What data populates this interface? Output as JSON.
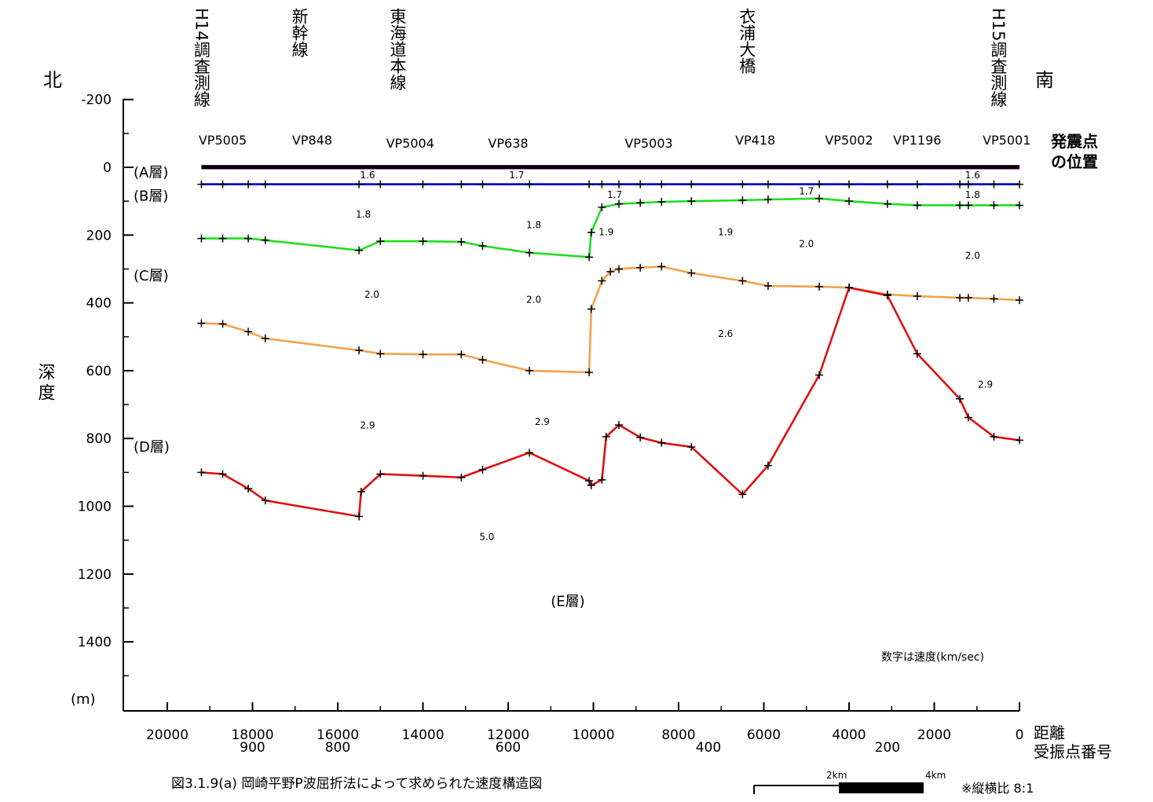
{
  "header": {
    "north": "北",
    "south": "南",
    "depth_label": "深度",
    "unit": "(m)",
    "shot_label_1": "発震点",
    "shot_label_2": "の位置",
    "distance_label": "距離",
    "receiver_label": "受振点番号",
    "velocity_note": "数字は速度(km/sec)",
    "caption": "図3.1.9(a)  岡崎平野P波屈折法によって求められた速度構造図",
    "aspect": "※縦横比 8:1",
    "scale_2km": "2km",
    "scale_4km": "4km"
  },
  "landmarks": [
    {
      "name": "H14調査測線",
      "x": 19200
    },
    {
      "name": "新幹線",
      "x": 16900
    },
    {
      "name": "東海道本線",
      "x": 14600
    },
    {
      "name": "衣浦大橋",
      "x": 6400
    },
    {
      "name": "H15調査測線",
      "x": 500
    }
  ],
  "chart_data": {
    "type": "line",
    "xlabel": "距離",
    "ylabel": "深度",
    "xlim": [
      21000,
      0
    ],
    "ylim": [
      -200,
      1600
    ],
    "x_ticks": [
      20000,
      18000,
      16000,
      14000,
      12000,
      10000,
      8000,
      6000,
      4000,
      2000,
      0
    ],
    "y_ticks": [
      -200,
      0,
      200,
      400,
      600,
      800,
      1000,
      1200,
      1400
    ],
    "receiver_ticks": [
      {
        "label": "900",
        "x": 18000
      },
      {
        "label": "800",
        "x": 16000
      },
      {
        "label": "600",
        "x": 12000
      },
      {
        "label": "400",
        "x": 7300
      },
      {
        "label": "200",
        "x": 3100
      }
    ],
    "shot_points": [
      {
        "label": "VP5005",
        "x": 18700
      },
      {
        "label": "VP848",
        "x": 16600
      },
      {
        "label": "VP5004",
        "x": 14300
      },
      {
        "label": "VP638",
        "x": 12000
      },
      {
        "label": "VP5003",
        "x": 8700
      },
      {
        "label": "VP418",
        "x": 6200
      },
      {
        "label": "VP5002",
        "x": 4000
      },
      {
        "label": "VP1196",
        "x": 2400
      },
      {
        "label": "VP5001",
        "x": 300
      }
    ],
    "layer_labels": [
      {
        "label": "(A層)",
        "y": 15
      },
      {
        "label": "(B層)",
        "y": 85
      },
      {
        "label": "(C層)",
        "y": 320
      },
      {
        "label": "(D層)",
        "y": 825
      },
      {
        "label": "(E層)",
        "x": 11000,
        "y": 1280
      }
    ],
    "velocities": [
      {
        "value": "1.6",
        "x": 15300,
        "y": 32
      },
      {
        "value": "1.7",
        "x": 11800,
        "y": 32
      },
      {
        "value": "1.7",
        "x": 9500,
        "y": 90
      },
      {
        "value": "1.7",
        "x": 5000,
        "y": 80
      },
      {
        "value": "1.6",
        "x": 1100,
        "y": 32
      },
      {
        "value": "1.8",
        "x": 15400,
        "y": 148
      },
      {
        "value": "1.8",
        "x": 11400,
        "y": 180
      },
      {
        "value": "1.8",
        "x": 1100,
        "y": 90
      },
      {
        "value": "1.9",
        "x": 9700,
        "y": 200
      },
      {
        "value": "1.9",
        "x": 6900,
        "y": 200
      },
      {
        "value": "2.0",
        "x": 5000,
        "y": 235
      },
      {
        "value": "2.0",
        "x": 1100,
        "y": 270
      },
      {
        "value": "2.0",
        "x": 15200,
        "y": 385
      },
      {
        "value": "2.0",
        "x": 11400,
        "y": 400
      },
      {
        "value": "2.6",
        "x": 6900,
        "y": 500
      },
      {
        "value": "2.9",
        "x": 800,
        "y": 650
      },
      {
        "value": "2.9",
        "x": 15300,
        "y": 770
      },
      {
        "value": "2.9",
        "x": 11200,
        "y": 760
      },
      {
        "value": "5.0",
        "x": 12500,
        "y": 1100
      }
    ],
    "series": [
      {
        "name": "地表",
        "color": "#000000",
        "x": [
          19200,
          0
        ],
        "y": [
          -1,
          -1
        ]
      },
      {
        "name": "A層下面",
        "color": "#0000cc",
        "x": [
          19200,
          18700,
          18100,
          17700,
          15500,
          15000,
          14000,
          13100,
          12600,
          11500,
          10100,
          9800,
          9400,
          8900,
          8400,
          7700,
          6500,
          5900,
          4700,
          4000,
          3100,
          2400,
          1400,
          1200,
          600,
          0
        ],
        "y": [
          50,
          50,
          50,
          50,
          50,
          50,
          50,
          50,
          50,
          50,
          50,
          50,
          50,
          50,
          50,
          50,
          50,
          50,
          50,
          50,
          50,
          50,
          50,
          50,
          50,
          50
        ]
      },
      {
        "name": "B層下面",
        "color": "#22dd22",
        "x": [
          19200,
          18700,
          18100,
          17700,
          15500,
          15000,
          14000,
          13100,
          12600,
          11500,
          10100,
          10050,
          9800,
          9400,
          8900,
          8400,
          7700,
          6500,
          5900,
          4700,
          4000,
          3100,
          2400,
          1400,
          1200,
          600,
          0
        ],
        "y": [
          210,
          210,
          210,
          215,
          245,
          218,
          218,
          220,
          232,
          252,
          265,
          192,
          118,
          108,
          105,
          102,
          100,
          97,
          95,
          92,
          100,
          108,
          112,
          112,
          112,
          112,
          112
        ]
      },
      {
        "name": "C層下面",
        "color": "#f5a04a",
        "x": [
          19200,
          18700,
          18100,
          17700,
          15500,
          15000,
          14000,
          13100,
          12600,
          11500,
          10100,
          10050,
          9800,
          9600,
          9400,
          8900,
          8400,
          7700,
          6500,
          5900,
          4700,
          4000,
          3100,
          2400,
          1400,
          1200,
          600,
          0
        ],
        "y": [
          460,
          462,
          485,
          505,
          540,
          550,
          552,
          552,
          568,
          600,
          605,
          418,
          335,
          308,
          300,
          296,
          293,
          312,
          335,
          350,
          352,
          355,
          375,
          380,
          385,
          385,
          388,
          392
        ]
      },
      {
        "name": "D層下面",
        "color": "#dd1111",
        "x": [
          19200,
          18700,
          18100,
          17700,
          15500,
          15450,
          15000,
          14000,
          13100,
          12600,
          11500,
          10100,
          10050,
          9800,
          9700,
          9400,
          8900,
          8400,
          7700,
          6500,
          5900,
          4700,
          4000,
          3100,
          2400,
          1400,
          1200,
          600,
          0
        ],
        "y": [
          900,
          905,
          948,
          983,
          1030,
          957,
          905,
          910,
          915,
          892,
          842,
          925,
          938,
          922,
          795,
          760,
          797,
          813,
          825,
          965,
          880,
          613,
          355,
          378,
          550,
          683,
          738,
          795,
          805
        ]
      }
    ]
  }
}
